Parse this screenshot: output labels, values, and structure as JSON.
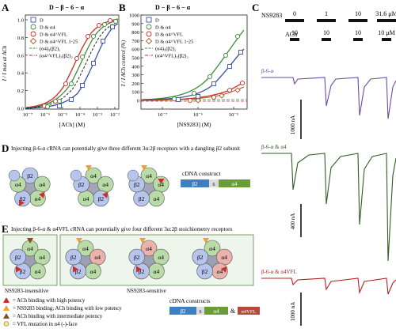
{
  "panels": {
    "A": {
      "letter": "A",
      "title": "D − β − 6 − α",
      "ylabel": "I / I max at ACh",
      "xlabel": "[ACh] (M)",
      "yticks": [
        "0.0",
        "0.2",
        "0.4",
        "0.6",
        "0.8",
        "1.0"
      ],
      "xticks": [
        "10⁻⁷",
        "10⁻⁶",
        "10⁻⁵",
        "10⁻⁴",
        "10⁻³",
        "10⁻²"
      ],
      "legend": [
        "D",
        "D & α4",
        "D & α4^VFL",
        "D & α4^VFL 1-25",
        "(α4)₃(β2)₂",
        "(α4^VFL)₃(β2)₂"
      ]
    },
    "B": {
      "letter": "B",
      "title": "D − β − 6 − α",
      "ylabel": "I / I ACh control (%)",
      "xlabel": "[NS9283] (M)",
      "yticks": [
        "0",
        "100",
        "200",
        "300",
        "400",
        "500",
        "600",
        "700",
        "800",
        "900",
        "1000"
      ],
      "xticks": [
        "10⁻⁷",
        "10⁻⁶",
        "10⁻⁵"
      ],
      "legend": [
        "D",
        "D & α4",
        "D & α4^VFL",
        "D & α4^VFL 1-25",
        "(α4)₃(β2)₂",
        "(α4^VFL)₃(β2)₂"
      ]
    },
    "C": {
      "letter": "C",
      "ns_label": "NS9283",
      "ns_values": [
        "0",
        "1",
        "10",
        "31.6 μM"
      ],
      "ach_label": "ACh",
      "ach_values": [
        "10",
        "10",
        "10",
        "10 μM"
      ],
      "row_labels": [
        "β-6-α",
        "β-6-α & α4",
        "β-6-α & α4VFL"
      ],
      "scale_labels": [
        "1000 nA",
        "400 nA",
        "1000 nA"
      ]
    },
    "D": {
      "letter": "D",
      "caption": "Injecting β-6-α cRNA can potentially give three different 3α:2β receptors with a dangling β2 subunit",
      "construct_title": "cDNA construct",
      "construct": [
        "β2",
        "6",
        "α4"
      ]
    },
    "E": {
      "letter": "E",
      "caption": "Injecting β-6-α & α4VFL cRNA can potentially give four different 3α:2β stoichiometry receptors",
      "insensitive": "NS9283-insensitive",
      "sensitive": "NS9283-sensitive",
      "construct_title": "cDNA constructs",
      "construct": [
        "β2",
        "6",
        "α4",
        "&",
        "α4VFL"
      ],
      "key": [
        "= ACh binding with high potency",
        "= NS9283 binding; ACh binding with low potency",
        "= ACh binding with intermediate potency",
        "= VFL mutation in α4 (-)-face"
      ]
    }
  },
  "colors": {
    "red": "#c8302a",
    "green": "#3b8a3b",
    "blue": "#3a52a8",
    "purple": "#6a4aa8",
    "darkgreen": "#2f5e22",
    "darkred": "#b81e1e",
    "alpha": "#b9dba8",
    "beta": "#b7c4ec",
    "alphaVFL": "#e9b3ab",
    "construct_beta": "#3f7fc0",
    "construct_alpha": "#6a9c3a",
    "construct_vfl": "#b54a3c"
  }
}
